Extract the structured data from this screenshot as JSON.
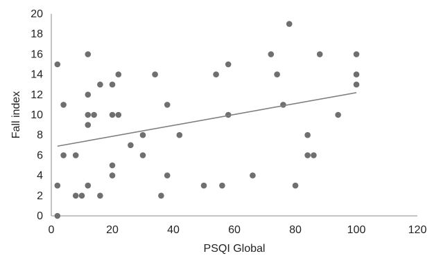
{
  "chart_data": {
    "type": "scatter",
    "title": "",
    "xlabel": "PSQI Global",
    "ylabel": "Fall index",
    "xlim": [
      0,
      120
    ],
    "ylim": [
      0,
      20
    ],
    "xticks": [
      0,
      20,
      40,
      60,
      80,
      100,
      120
    ],
    "yticks": [
      0,
      2,
      4,
      6,
      8,
      10,
      12,
      14,
      16,
      18,
      20
    ],
    "grid": false,
    "point_color": "#6f6f6f",
    "line_color": "#7f7f7f",
    "trendline": {
      "x": [
        2,
        100
      ],
      "y": [
        6.9,
        12.2
      ]
    },
    "points": [
      [
        2,
        15
      ],
      [
        2,
        3
      ],
      [
        2,
        0
      ],
      [
        4,
        11
      ],
      [
        4,
        6
      ],
      [
        8,
        6
      ],
      [
        8,
        2
      ],
      [
        10,
        2
      ],
      [
        12,
        16
      ],
      [
        12,
        12
      ],
      [
        12,
        10
      ],
      [
        12,
        9
      ],
      [
        12,
        3
      ],
      [
        14,
        10
      ],
      [
        16,
        13
      ],
      [
        16,
        2
      ],
      [
        20,
        13
      ],
      [
        20,
        10
      ],
      [
        20,
        5
      ],
      [
        20,
        4
      ],
      [
        22,
        14
      ],
      [
        22,
        10
      ],
      [
        26,
        7
      ],
      [
        30,
        8
      ],
      [
        30,
        6
      ],
      [
        34,
        14
      ],
      [
        36,
        2
      ],
      [
        38,
        11
      ],
      [
        38,
        4
      ],
      [
        42,
        8
      ],
      [
        50,
        3
      ],
      [
        54,
        14
      ],
      [
        56,
        3
      ],
      [
        58,
        15
      ],
      [
        58,
        10
      ],
      [
        66,
        4
      ],
      [
        72,
        16
      ],
      [
        74,
        14
      ],
      [
        76,
        11
      ],
      [
        78,
        19
      ],
      [
        80,
        3
      ],
      [
        84,
        8
      ],
      [
        84,
        6
      ],
      [
        86,
        6
      ],
      [
        88,
        16
      ],
      [
        94,
        10
      ],
      [
        100,
        16
      ],
      [
        100,
        14
      ],
      [
        100,
        13
      ]
    ]
  }
}
